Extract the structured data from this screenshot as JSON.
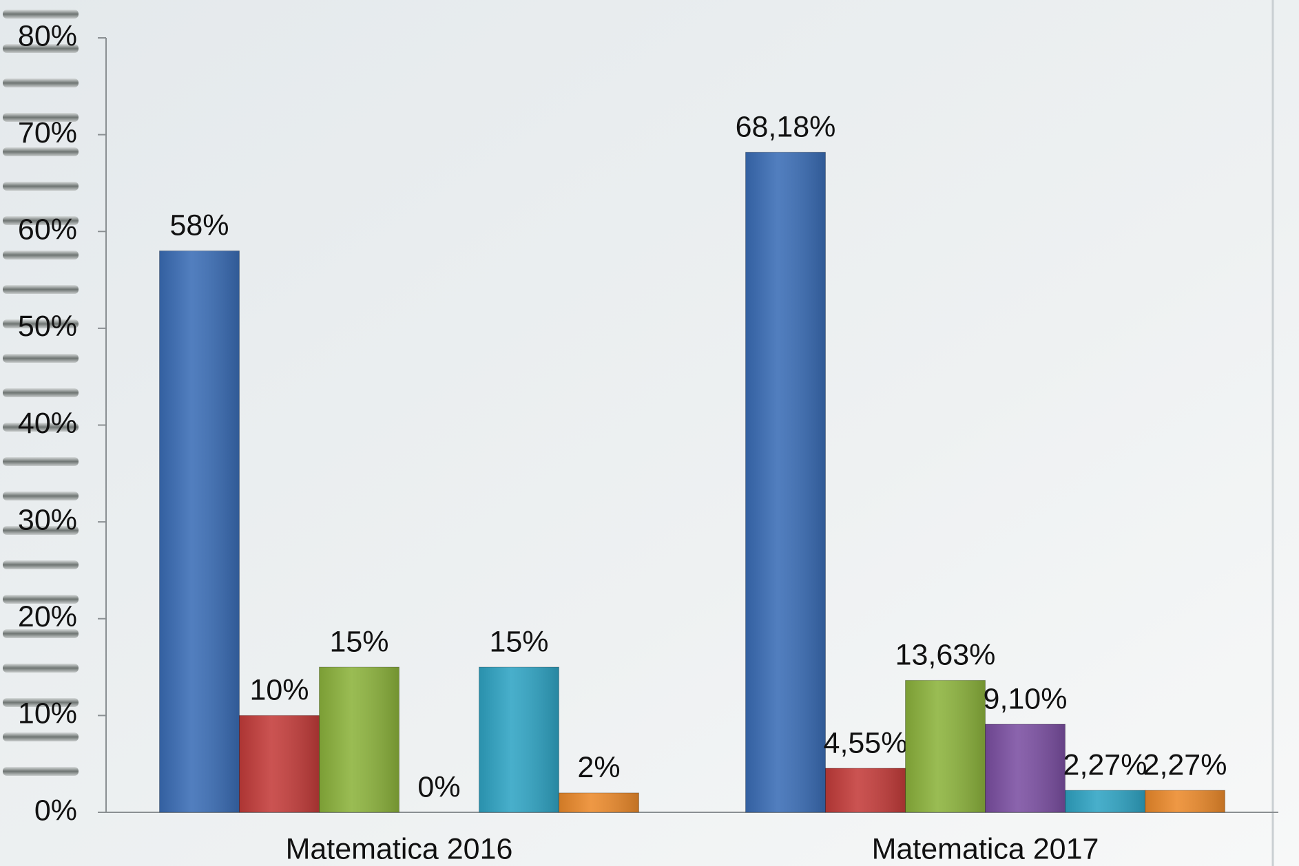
{
  "chart_data": {
    "type": "bar",
    "categories": [
      "Matematica 2016",
      "Matematica 2017"
    ],
    "series": [
      {
        "color": "#3a6db6",
        "values": [
          58,
          68.18
        ],
        "value_labels": [
          "58%",
          "68,18%"
        ]
      },
      {
        "color": "#c43c3a",
        "values": [
          10,
          4.55
        ],
        "value_labels": [
          "10%",
          "4,55%"
        ]
      },
      {
        "color": "#8cb33c",
        "values": [
          15,
          13.63
        ],
        "value_labels": [
          "15%",
          "13,63%"
        ]
      },
      {
        "color": "#7b4fa2",
        "values": [
          0,
          9.1
        ],
        "value_labels": [
          "0%",
          "9,10%"
        ]
      },
      {
        "color": "#2fa4c4",
        "values": [
          15,
          2.27
        ],
        "value_labels": [
          "15%",
          "2,27%"
        ]
      },
      {
        "color": "#ec8a2b",
        "values": [
          2,
          2.27
        ],
        "value_labels": [
          "2%",
          "2,27%"
        ]
      }
    ],
    "ylim": [
      0,
      80
    ],
    "yticks": [
      {
        "value": 0,
        "label": "0%"
      },
      {
        "value": 10,
        "label": "10%"
      },
      {
        "value": 20,
        "label": "20%"
      },
      {
        "value": 30,
        "label": "30%"
      },
      {
        "value": 40,
        "label": "40%"
      },
      {
        "value": 50,
        "label": "50%"
      },
      {
        "value": 60,
        "label": "60%"
      },
      {
        "value": 70,
        "label": "70%"
      },
      {
        "value": 80,
        "label": "80%"
      }
    ]
  }
}
